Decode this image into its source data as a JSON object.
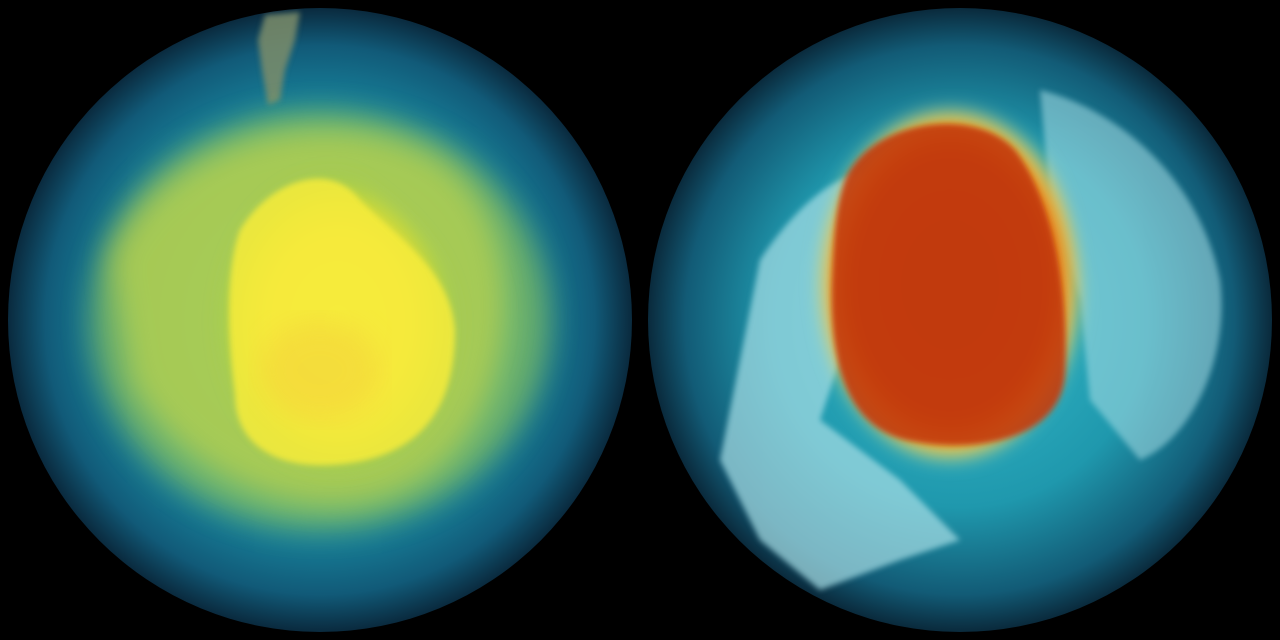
{
  "scene": {
    "background_color": "#000000",
    "globes": [
      {
        "id": "left-globe",
        "colors": {
          "ocean": "#0f5a78",
          "rim": "#0a2f45",
          "band": "#1fa7b8",
          "outer_ring": "#9ecf3a",
          "core": "#f6e83a",
          "core_orange": "#f2b93a",
          "land": "#6f7f5c"
        }
      },
      {
        "id": "right-globe",
        "colors": {
          "ocean": "#125c76",
          "rim": "#0a2c40",
          "band": "#2cb6c4",
          "land_ice": "#a8dfe6",
          "ring_yellow": "#f2d63a",
          "ring_orange": "#f08a1e",
          "core": "#c23a0a"
        }
      }
    ]
  }
}
